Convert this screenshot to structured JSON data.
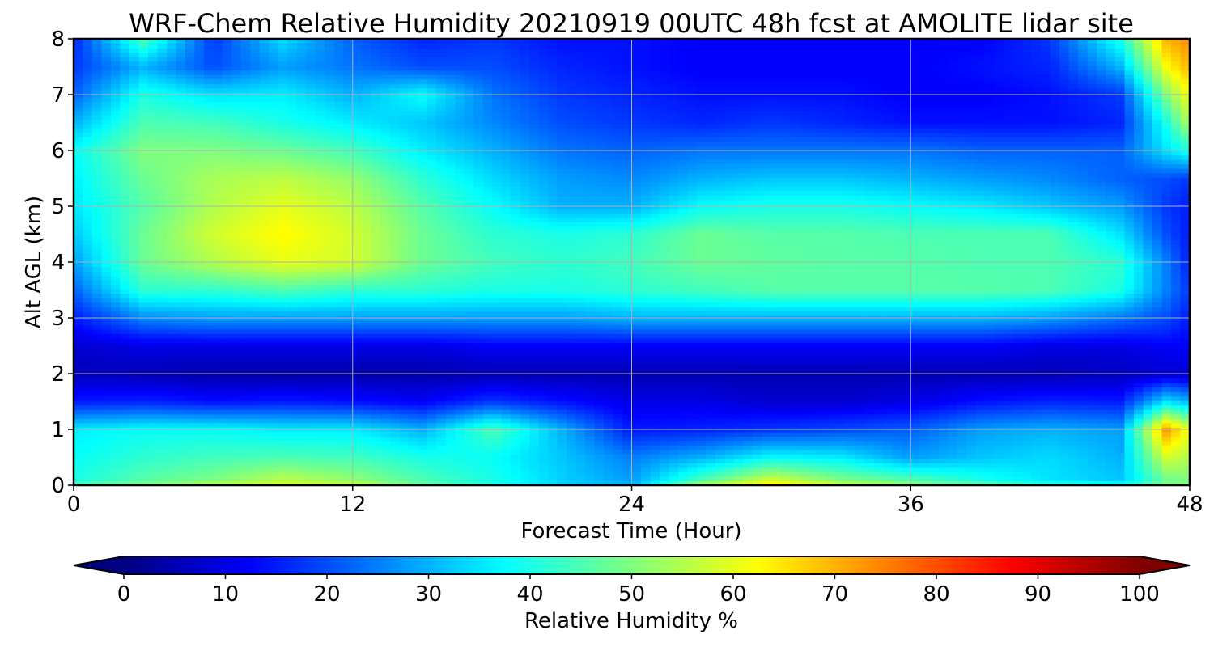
{
  "chart_data": {
    "type": "heatmap",
    "title": "WRF-Chem Relative Humidity 20210919 00UTC 48h fcst at AMOLITE lidar site",
    "xlabel": "Forecast Time (Hour)",
    "ylabel": "Alt AGL (km)",
    "xlim": [
      0,
      48
    ],
    "ylim": [
      0,
      8
    ],
    "x_ticks": [
      0,
      12,
      24,
      36,
      48
    ],
    "y_ticks": [
      0,
      1,
      2,
      3,
      4,
      5,
      6,
      7,
      8
    ],
    "grid": true,
    "colormap": "jet",
    "colorbar": {
      "label": "Relative Humidity %",
      "range": [
        0,
        100
      ],
      "ticks": [
        0,
        10,
        20,
        30,
        40,
        50,
        60,
        70,
        80,
        90,
        100
      ],
      "extend": "both",
      "orientation": "horizontal",
      "placement": "bottom"
    },
    "x": [
      0,
      3,
      6,
      9,
      12,
      15,
      18,
      21,
      24,
      27,
      30,
      33,
      36,
      39,
      42,
      45,
      47,
      48
    ],
    "y": [
      0,
      0.1,
      0.5,
      1,
      1.5,
      2,
      2.5,
      3,
      3.5,
      4,
      4.5,
      5,
      5.5,
      6,
      6.5,
      7,
      7.5,
      8
    ],
    "z": [
      [
        45,
        50,
        55,
        58,
        57,
        48,
        40,
        33,
        30,
        55,
        66,
        58,
        52,
        48,
        42,
        40,
        50,
        50
      ],
      [
        40,
        46,
        50,
        56,
        52,
        45,
        40,
        33,
        28,
        45,
        58,
        50,
        46,
        40,
        35,
        32,
        48,
        50
      ],
      [
        38,
        42,
        44,
        45,
        44,
        40,
        38,
        32,
        25,
        30,
        38,
        36,
        28,
        32,
        34,
        30,
        58,
        55
      ],
      [
        36,
        38,
        38,
        36,
        36,
        30,
        45,
        30,
        15,
        16,
        18,
        20,
        22,
        28,
        30,
        28,
        72,
        60
      ],
      [
        15,
        16,
        14,
        15,
        14,
        12,
        18,
        14,
        10,
        10,
        8,
        8,
        10,
        14,
        16,
        15,
        35,
        30
      ],
      [
        6,
        5,
        4,
        4,
        4,
        4,
        5,
        5,
        5,
        5,
        5,
        5,
        5,
        5,
        5,
        6,
        8,
        8
      ],
      [
        8,
        10,
        10,
        10,
        10,
        10,
        12,
        12,
        12,
        12,
        12,
        12,
        12,
        12,
        10,
        10,
        12,
        12
      ],
      [
        15,
        26,
        28,
        28,
        28,
        28,
        28,
        28,
        30,
        30,
        30,
        30,
        30,
        30,
        28,
        24,
        20,
        15
      ],
      [
        22,
        42,
        42,
        45,
        42,
        42,
        40,
        40,
        42,
        44,
        46,
        46,
        46,
        46,
        45,
        40,
        25,
        18
      ],
      [
        28,
        48,
        55,
        60,
        58,
        48,
        44,
        42,
        44,
        48,
        47,
        46,
        46,
        45,
        45,
        42,
        25,
        15
      ],
      [
        32,
        48,
        58,
        63,
        58,
        48,
        42,
        40,
        42,
        48,
        46,
        46,
        45,
        45,
        45,
        35,
        20,
        15
      ],
      [
        35,
        46,
        55,
        60,
        56,
        46,
        38,
        30,
        30,
        38,
        40,
        40,
        38,
        36,
        32,
        28,
        18,
        15
      ],
      [
        36,
        48,
        54,
        56,
        52,
        42,
        34,
        28,
        26,
        30,
        32,
        32,
        30,
        28,
        26,
        22,
        20,
        18
      ],
      [
        38,
        50,
        50,
        48,
        44,
        36,
        30,
        24,
        22,
        24,
        24,
        24,
        24,
        22,
        22,
        22,
        35,
        40
      ],
      [
        30,
        45,
        44,
        40,
        36,
        32,
        26,
        20,
        18,
        16,
        18,
        16,
        14,
        14,
        14,
        16,
        40,
        55
      ],
      [
        22,
        40,
        35,
        36,
        30,
        38,
        24,
        18,
        16,
        14,
        14,
        14,
        12,
        12,
        14,
        18,
        50,
        62
      ],
      [
        18,
        30,
        20,
        28,
        24,
        20,
        20,
        16,
        14,
        12,
        12,
        12,
        12,
        14,
        16,
        30,
        62,
        70
      ],
      [
        16,
        45,
        18,
        34,
        22,
        16,
        18,
        14,
        14,
        12,
        12,
        12,
        12,
        12,
        18,
        40,
        70,
        74
      ]
    ]
  }
}
